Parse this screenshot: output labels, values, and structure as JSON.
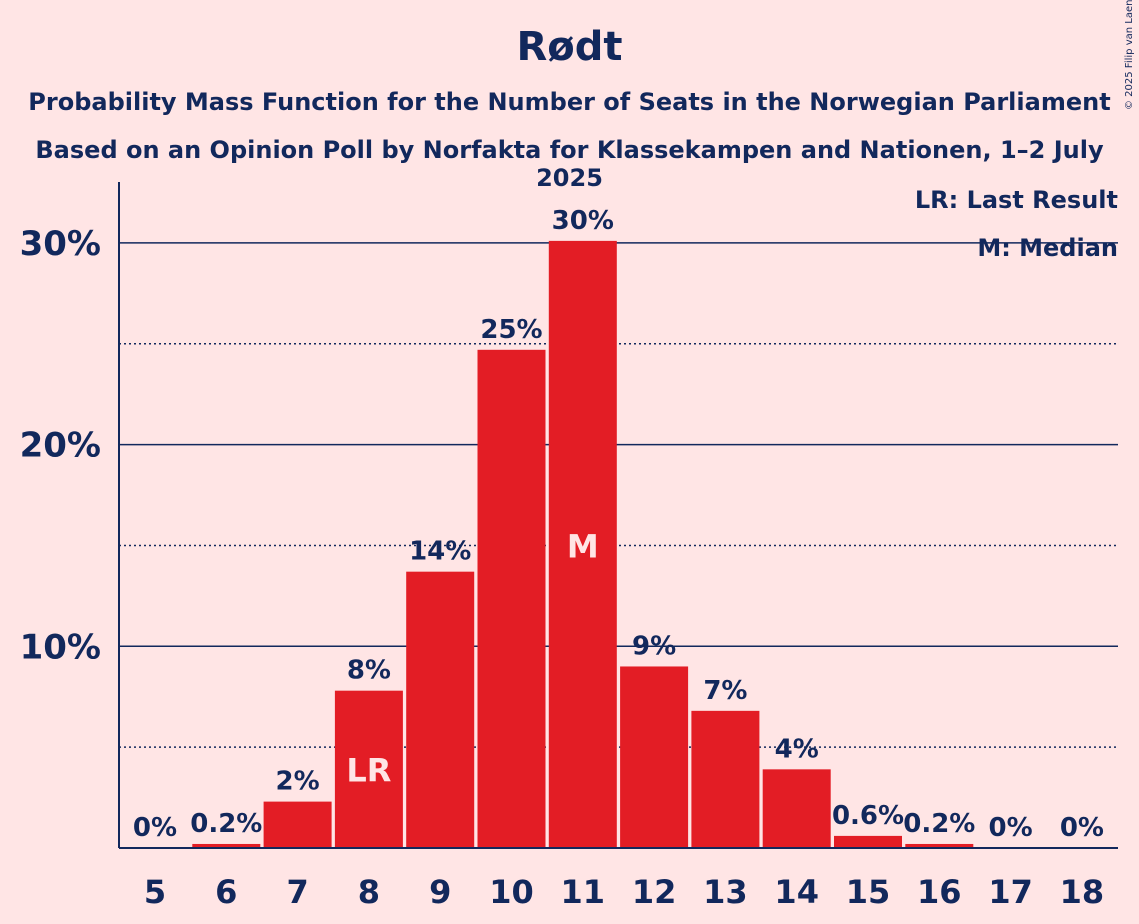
{
  "header": {
    "title": "Rødt",
    "subtitle1": "Probability Mass Function for the Number of Seats in the Norwegian Parliament",
    "subtitle2": "Based on an Opinion Poll by Norfakta for Klassekampen and Nationen, 1–2 July 2025"
  },
  "copyright": "© 2025 Filip van Laenen",
  "legend": {
    "last_result": "LR: Last Result",
    "median": "M: Median"
  },
  "colors": {
    "background": "#FFE5E5",
    "bar": "#E31D25",
    "text": "#12285C",
    "marker_text": "#FFE5E5"
  },
  "chart_data": {
    "type": "bar",
    "title": "Rødt",
    "categories": [
      "5",
      "6",
      "7",
      "8",
      "9",
      "10",
      "11",
      "12",
      "13",
      "14",
      "15",
      "16",
      "17",
      "18"
    ],
    "values": [
      0,
      0.2,
      2.3,
      7.8,
      13.7,
      24.7,
      30.1,
      9.0,
      6.8,
      3.9,
      0.6,
      0.2,
      0,
      0
    ],
    "data_labels": [
      "0%",
      "0.2%",
      "2%",
      "8%",
      "14%",
      "25%",
      "30%",
      "9%",
      "7%",
      "4%",
      "0.6%",
      "0.2%",
      "0%",
      "0%"
    ],
    "y_ticks": [
      {
        "value": 10,
        "label": "10%"
      },
      {
        "value": 20,
        "label": "20%"
      },
      {
        "value": 30,
        "label": "30%"
      }
    ],
    "minor_gridlines": [
      5,
      15,
      25
    ],
    "ylim": [
      0,
      33
    ],
    "markers": [
      {
        "category": "8",
        "label": "LR"
      },
      {
        "category": "11",
        "label": "M"
      }
    ],
    "grid": true,
    "legend_position": "top-right"
  }
}
